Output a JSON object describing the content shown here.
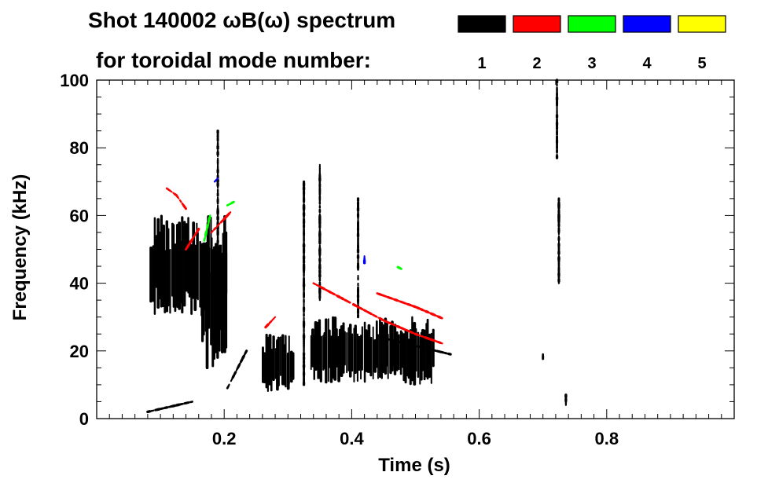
{
  "chart_data": {
    "type": "heatmap",
    "title_line1": "Shot 140002 ωB(ω) spectrum",
    "title_line2": "for toroidal mode number:",
    "xlabel": "Time (s)",
    "ylabel": "Frequency (kHz)",
    "xlim": [
      0.0,
      1.0
    ],
    "ylim": [
      0,
      100
    ],
    "x_ticks": [
      {
        "value": 0.2,
        "label": "0.2"
      },
      {
        "value": 0.4,
        "label": "0.4"
      },
      {
        "value": 0.6,
        "label": "0.6"
      },
      {
        "value": 0.8,
        "label": "0.8"
      }
    ],
    "y_ticks": [
      {
        "value": 0,
        "label": "0"
      },
      {
        "value": 20,
        "label": "20"
      },
      {
        "value": 40,
        "label": "40"
      },
      {
        "value": 60,
        "label": "60"
      },
      {
        "value": 80,
        "label": "80"
      },
      {
        "value": 100,
        "label": "100"
      }
    ],
    "grid": false,
    "legend_position": "top-right",
    "legend": [
      {
        "mode": "1",
        "color": "#000000"
      },
      {
        "mode": "2",
        "color": "#ff0000"
      },
      {
        "mode": "3",
        "color": "#00ff00"
      },
      {
        "mode": "4",
        "color": "#0000ff"
      },
      {
        "mode": "5",
        "color": "#ffff00"
      }
    ],
    "features": [
      {
        "mode": "1",
        "shape": "blob",
        "t": [
          0.085,
          0.205
        ],
        "f": [
          30,
          60
        ]
      },
      {
        "mode": "1",
        "shape": "blob",
        "t": [
          0.165,
          0.205
        ],
        "f": [
          15,
          55
        ]
      },
      {
        "mode": "1",
        "shape": "blob",
        "t": [
          0.26,
          0.31
        ],
        "f": [
          8,
          25
        ]
      },
      {
        "mode": "1",
        "shape": "blob",
        "t": [
          0.335,
          0.53
        ],
        "f": [
          10,
          30
        ]
      },
      {
        "mode": "1",
        "shape": "line",
        "points": [
          [
            0.205,
            9
          ],
          [
            0.235,
            20
          ]
        ]
      },
      {
        "mode": "1",
        "shape": "line",
        "points": [
          [
            0.08,
            2
          ],
          [
            0.15,
            5
          ]
        ]
      },
      {
        "mode": "1",
        "shape": "line",
        "points": [
          [
            0.445,
            24
          ],
          [
            0.555,
            19
          ]
        ]
      },
      {
        "mode": "1",
        "shape": "line",
        "points": [
          [
            0.722,
            77
          ],
          [
            0.722,
            100
          ]
        ]
      },
      {
        "mode": "1",
        "shape": "line",
        "points": [
          [
            0.725,
            40
          ],
          [
            0.725,
            65
          ]
        ]
      },
      {
        "mode": "1",
        "shape": "line",
        "points": [
          [
            0.7,
            17
          ],
          [
            0.7,
            19
          ]
        ]
      },
      {
        "mode": "1",
        "shape": "line",
        "points": [
          [
            0.736,
            4
          ],
          [
            0.736,
            7
          ]
        ]
      },
      {
        "mode": "1",
        "shape": "line",
        "points": [
          [
            0.19,
            30
          ],
          [
            0.19,
            85
          ]
        ]
      },
      {
        "mode": "1",
        "shape": "line",
        "points": [
          [
            0.325,
            10
          ],
          [
            0.325,
            70
          ]
        ]
      },
      {
        "mode": "1",
        "shape": "line",
        "points": [
          [
            0.35,
            35
          ],
          [
            0.35,
            75
          ]
        ]
      },
      {
        "mode": "1",
        "shape": "line",
        "points": [
          [
            0.41,
            30
          ],
          [
            0.41,
            65
          ]
        ]
      },
      {
        "mode": "2",
        "shape": "line",
        "points": [
          [
            0.11,
            68
          ],
          [
            0.125,
            66
          ],
          [
            0.14,
            62
          ]
        ]
      },
      {
        "mode": "2",
        "shape": "line",
        "points": [
          [
            0.18,
            55
          ],
          [
            0.195,
            58
          ],
          [
            0.21,
            61
          ]
        ]
      },
      {
        "mode": "2",
        "shape": "line",
        "points": [
          [
            0.34,
            40
          ],
          [
            0.4,
            34
          ],
          [
            0.45,
            29
          ],
          [
            0.5,
            25
          ],
          [
            0.545,
            22
          ]
        ]
      },
      {
        "mode": "2",
        "shape": "line",
        "points": [
          [
            0.265,
            27
          ],
          [
            0.28,
            30
          ]
        ]
      },
      {
        "mode": "2",
        "shape": "line",
        "points": [
          [
            0.14,
            50
          ],
          [
            0.16,
            56
          ]
        ]
      },
      {
        "mode": "2",
        "shape": "line",
        "points": [
          [
            0.44,
            37
          ],
          [
            0.5,
            33
          ],
          [
            0.55,
            29
          ]
        ]
      },
      {
        "mode": "3",
        "shape": "line",
        "points": [
          [
            0.168,
            52
          ],
          [
            0.178,
            60
          ]
        ]
      },
      {
        "mode": "3",
        "shape": "line",
        "points": [
          [
            0.205,
            63
          ],
          [
            0.215,
            64
          ]
        ]
      },
      {
        "mode": "3",
        "shape": "line",
        "points": [
          [
            0.47,
            45
          ],
          [
            0.48,
            44
          ]
        ]
      },
      {
        "mode": "4",
        "shape": "line",
        "points": [
          [
            0.185,
            70
          ],
          [
            0.19,
            71
          ]
        ]
      },
      {
        "mode": "4",
        "shape": "line",
        "points": [
          [
            0.42,
            46
          ],
          [
            0.42,
            48
          ]
        ]
      }
    ]
  }
}
